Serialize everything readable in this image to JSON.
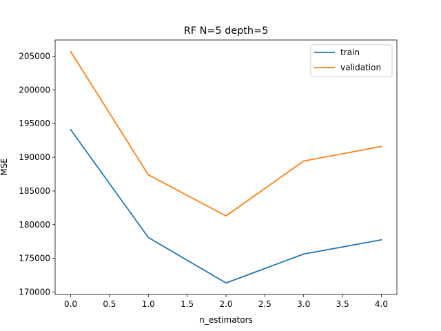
{
  "chart_data": {
    "type": "line",
    "title": "RF N=5 depth=5",
    "xlabel": "n_estimators",
    "ylabel": "MSE",
    "x": [
      0,
      1,
      2,
      3,
      4
    ],
    "series": [
      {
        "name": "train",
        "color": "#1f77b4",
        "values": [
          194100,
          178100,
          171350,
          175650,
          177750
        ]
      },
      {
        "name": "validation",
        "color": "#ff7f0e",
        "values": [
          205700,
          187400,
          181300,
          189450,
          191600
        ]
      }
    ],
    "xlim": [
      -0.2,
      4.2
    ],
    "ylim": [
      169650,
      207400
    ],
    "xticks": [
      0.0,
      0.5,
      1.0,
      1.5,
      2.0,
      2.5,
      3.0,
      3.5,
      4.0
    ],
    "xtick_labels": [
      "0.0",
      "0.5",
      "1.0",
      "1.5",
      "2.0",
      "2.5",
      "3.0",
      "3.5",
      "4.0"
    ],
    "yticks": [
      170000,
      175000,
      180000,
      185000,
      190000,
      195000,
      200000,
      205000
    ],
    "ytick_labels": [
      "170000",
      "175000",
      "180000",
      "185000",
      "190000",
      "195000",
      "200000",
      "205000"
    ],
    "grid": false,
    "legend_position": "top-right"
  }
}
